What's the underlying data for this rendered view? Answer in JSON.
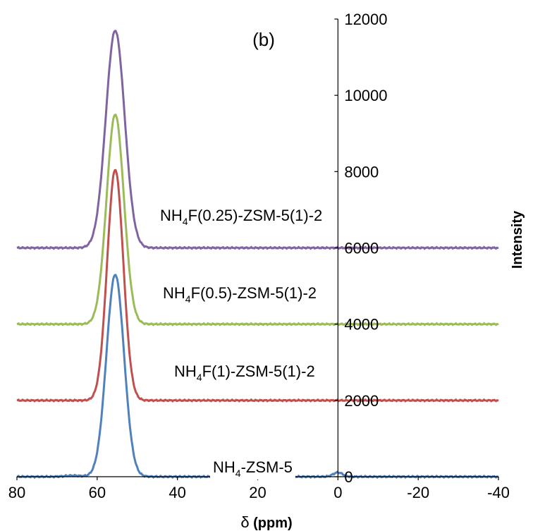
{
  "chart_data": {
    "type": "line",
    "panel_label": "(b)",
    "xlabel_symbol": "δ",
    "xlabel_unit": " (ppm)",
    "ylabel": "Intensity",
    "xlim": [
      80,
      -40
    ],
    "ylim": [
      0,
      12000
    ],
    "x_ticks": [
      80,
      60,
      40,
      20,
      0,
      -20,
      -40
    ],
    "y_ticks": [
      0,
      2000,
      4000,
      6000,
      8000,
      10000,
      12000
    ],
    "peak_center": 55.5,
    "series": [
      {
        "key": "nh4",
        "label_main": "NH",
        "label_sub": "4",
        "label_rest": "-ZSM-5",
        "color": "#4f81bd",
        "baseline": 0,
        "peak": 5300,
        "width": 2.2
      },
      {
        "key": "f1",
        "label_main": "NH",
        "label_sub": "4",
        "label_rest": "F(1)-ZSM-5(1)-2",
        "color": "#c0504d",
        "baseline": 2000,
        "peak": 8050,
        "width": 2.0
      },
      {
        "key": "f05",
        "label_main": "NH",
        "label_sub": "4",
        "label_rest": "F(0.5)-ZSM-5(1)-2",
        "color": "#9bbb59",
        "baseline": 4000,
        "peak": 9500,
        "width": 2.15
      },
      {
        "key": "f025",
        "label_main": "NH",
        "label_sub": "4",
        "label_rest": "F(0.25)-ZSM-5(1)-2",
        "color": "#8064a2",
        "baseline": 6000,
        "peak": 11700,
        "width": 2.35
      }
    ]
  }
}
